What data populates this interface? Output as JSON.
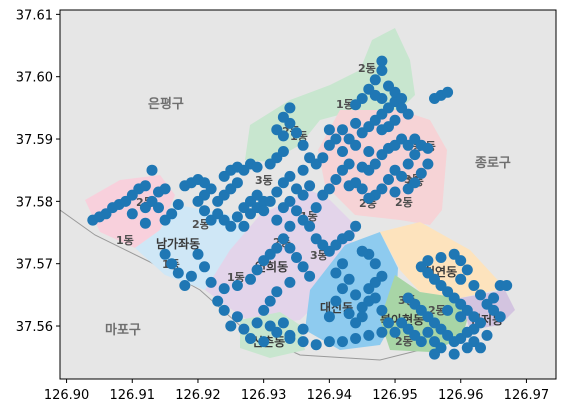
{
  "chart_data": {
    "type": "scatter",
    "title": "",
    "xlabel": "",
    "ylabel": "",
    "xlim": [
      126.899,
      126.9745
    ],
    "ylim": [
      37.5515,
      37.6107
    ],
    "xticks": [
      "126.90",
      "126.91",
      "126.92",
      "126.93",
      "126.94",
      "126.95",
      "126.96",
      "126.97"
    ],
    "yticks": [
      "37.56",
      "37.57",
      "37.58",
      "37.59",
      "37.60",
      "37.61"
    ],
    "grid": false,
    "point_color": "#1f77b4",
    "background_map_labels": {
      "outer": [
        "은평구",
        "종로구",
        "마포구"
      ],
      "districts": [
        "남가좌동",
        "연희동",
        "대신동",
        "천연동",
        "북아현동",
        "현저동",
        "신촌동"
      ],
      "subdistricts": [
        "2동",
        "2동",
        "1동",
        "2동",
        "1동",
        "2동",
        "1동",
        "2동",
        "1동",
        "2동",
        "2동",
        "3동",
        "3동",
        "2동",
        "2동",
        "3동",
        "2동",
        "2동",
        "3동",
        "1동",
        "1동",
        "2동"
      ]
    },
    "series": [
      {
        "points": [
          [
            126.904,
            37.577
          ],
          [
            126.906,
            37.578
          ],
          [
            126.905,
            37.5775
          ],
          [
            126.907,
            37.579
          ],
          [
            126.908,
            37.5795
          ],
          [
            126.909,
            37.58
          ],
          [
            126.91,
            37.581
          ],
          [
            126.911,
            37.582
          ],
          [
            126.912,
            37.5825
          ],
          [
            126.913,
            37.585
          ],
          [
            126.91,
            37.578
          ],
          [
            126.912,
            37.579
          ],
          [
            126.913,
            37.58
          ],
          [
            126.914,
            37.5815
          ],
          [
            126.915,
            37.582
          ],
          [
            126.914,
            37.579
          ],
          [
            126.912,
            37.5765
          ],
          [
            126.915,
            37.577
          ],
          [
            126.916,
            37.578
          ],
          [
            126.917,
            37.5795
          ],
          [
            126.918,
            37.5825
          ],
          [
            126.919,
            37.583
          ],
          [
            126.92,
            37.5835
          ],
          [
            126.921,
            37.583
          ],
          [
            126.922,
            37.582
          ],
          [
            126.921,
            37.581
          ],
          [
            126.923,
            37.58
          ],
          [
            126.924,
            37.581
          ],
          [
            126.925,
            37.582
          ],
          [
            126.926,
            37.583
          ],
          [
            126.924,
            37.584
          ],
          [
            126.925,
            37.585
          ],
          [
            126.926,
            37.5855
          ],
          [
            126.927,
            37.585
          ],
          [
            126.928,
            37.586
          ],
          [
            126.929,
            37.5855
          ],
          [
            126.92,
            37.58
          ],
          [
            126.921,
            37.5785
          ],
          [
            126.922,
            37.577
          ],
          [
            126.923,
            37.578
          ],
          [
            126.924,
            37.577
          ],
          [
            126.925,
            37.576
          ],
          [
            126.926,
            37.5775
          ],
          [
            126.927,
            37.579
          ],
          [
            126.928,
            37.58
          ],
          [
            126.929,
            37.581
          ],
          [
            126.928,
            37.578
          ],
          [
            126.927,
            37.576
          ],
          [
            126.929,
            37.579
          ],
          [
            126.93,
            37.58
          ],
          [
            126.931,
            37.586
          ],
          [
            126.932,
            37.587
          ],
          [
            126.933,
            37.588
          ],
          [
            126.933,
            37.5905
          ],
          [
            126.934,
            37.5925
          ],
          [
            126.934,
            37.595
          ],
          [
            126.933,
            37.5935
          ],
          [
            126.935,
            37.591
          ],
          [
            126.932,
            37.5915
          ],
          [
            126.936,
            37.589
          ],
          [
            126.937,
            37.587
          ],
          [
            126.936,
            37.585
          ],
          [
            126.938,
            37.586
          ],
          [
            126.939,
            37.587
          ],
          [
            126.934,
            37.584
          ],
          [
            126.933,
            37.583
          ],
          [
            126.935,
            37.582
          ],
          [
            126.936,
            37.581
          ],
          [
            126.937,
            37.5825
          ],
          [
            126.932,
            37.5815
          ],
          [
            126.931,
            37.58
          ],
          [
            126.93,
            37.5785
          ],
          [
            126.933,
            37.579
          ],
          [
            126.934,
            37.58
          ],
          [
            126.935,
            37.5785
          ],
          [
            126.936,
            37.577
          ],
          [
            126.932,
            37.577
          ],
          [
            126.934,
            37.576
          ],
          [
            126.937,
            37.576
          ],
          [
            126.938,
            37.574
          ],
          [
            126.939,
            37.573
          ],
          [
            126.94,
            37.572
          ],
          [
            126.941,
            37.573
          ],
          [
            126.942,
            37.574
          ],
          [
            126.943,
            37.5745
          ],
          [
            126.944,
            37.576
          ],
          [
            126.938,
            37.579
          ],
          [
            126.939,
            37.581
          ],
          [
            126.94,
            37.582
          ],
          [
            126.941,
            37.5835
          ],
          [
            126.942,
            37.585
          ],
          [
            126.943,
            37.586
          ],
          [
            126.942,
            37.588
          ],
          [
            126.944,
            37.589
          ],
          [
            126.945,
            37.5855
          ],
          [
            126.946,
            37.585
          ],
          [
            126.947,
            37.586
          ],
          [
            126.948,
            37.5875
          ],
          [
            126.946,
            37.588
          ],
          [
            126.949,
            37.5885
          ],
          [
            126.95,
            37.589
          ],
          [
            126.951,
            37.59
          ],
          [
            126.952,
            37.589
          ],
          [
            126.953,
            37.59
          ],
          [
            126.954,
            37.589
          ],
          [
            126.955,
            37.5885
          ],
          [
            126.953,
            37.5875
          ],
          [
            126.952,
            37.586
          ],
          [
            126.95,
            37.585
          ],
          [
            126.951,
            37.584
          ],
          [
            126.949,
            37.5835
          ],
          [
            126.948,
            37.582
          ],
          [
            126.947,
            37.581
          ],
          [
            126.946,
            37.5805
          ],
          [
            126.945,
            37.582
          ],
          [
            126.944,
            37.583
          ],
          [
            126.943,
            37.5825
          ],
          [
            126.95,
            37.5815
          ],
          [
            126.952,
            37.582
          ],
          [
            126.953,
            37.583
          ],
          [
            126.954,
            37.5845
          ],
          [
            126.955,
            37.586
          ],
          [
            126.945,
            37.591
          ],
          [
            126.946,
            37.592
          ],
          [
            126.947,
            37.593
          ],
          [
            126.948,
            37.594
          ],
          [
            126.949,
            37.595
          ],
          [
            126.95,
            37.596
          ],
          [
            126.948,
            37.5965
          ],
          [
            126.947,
            37.597
          ],
          [
            126.946,
            37.598
          ],
          [
            126.945,
            37.5965
          ],
          [
            126.944,
            37.5955
          ],
          [
            126.947,
            37.5995
          ],
          [
            126.948,
            37.601
          ],
          [
            126.948,
            37.6025
          ],
          [
            126.949,
            37.5985
          ],
          [
            126.95,
            37.5975
          ],
          [
            126.951,
            37.5965
          ],
          [
            126.951,
            37.595
          ],
          [
            126.952,
            37.594
          ],
          [
            126.95,
            37.593
          ],
          [
            126.949,
            37.592
          ],
          [
            126.948,
            37.5915
          ],
          [
            126.957,
            37.597
          ],
          [
            126.958,
            37.5975
          ],
          [
            126.956,
            37.5965
          ],
          [
            126.94,
            37.5915
          ],
          [
            126.941,
            37.59
          ],
          [
            126.942,
            37.5915
          ],
          [
            126.943,
            37.59
          ],
          [
            126.944,
            37.5925
          ],
          [
            126.94,
            37.589
          ],
          [
            126.94,
            37.5615
          ],
          [
            126.941,
            37.564
          ],
          [
            126.942,
            37.566
          ],
          [
            126.941,
            37.5685
          ],
          [
            126.942,
            37.57
          ],
          [
            126.943,
            37.5675
          ],
          [
            126.944,
            37.565
          ],
          [
            126.945,
            37.563
          ],
          [
            126.946,
            37.564
          ],
          [
            126.945,
            37.5615
          ],
          [
            126.944,
            37.5605
          ],
          [
            126.943,
            37.562
          ],
          [
            126.946,
            37.566
          ],
          [
            126.947,
            37.567
          ],
          [
            126.948,
            37.568
          ],
          [
            126.947,
            37.57
          ],
          [
            126.946,
            37.5715
          ],
          [
            126.945,
            37.572
          ],
          [
            126.947,
            37.5645
          ],
          [
            126.948,
            37.5625
          ],
          [
            126.949,
            37.5605
          ],
          [
            126.95,
            37.559
          ],
          [
            126.948,
            37.559
          ],
          [
            126.946,
            37.5585
          ],
          [
            126.944,
            37.558
          ],
          [
            126.942,
            37.5575
          ],
          [
            126.94,
            37.5575
          ],
          [
            126.938,
            37.557
          ],
          [
            126.936,
            37.5575
          ],
          [
            126.934,
            37.558
          ],
          [
            126.932,
            37.559
          ],
          [
            126.93,
            37.5575
          ],
          [
            126.928,
            37.558
          ],
          [
            126.927,
            37.5595
          ],
          [
            126.929,
            37.5605
          ],
          [
            126.931,
            37.56
          ],
          [
            126.933,
            37.5605
          ],
          [
            126.934,
            37.5585
          ],
          [
            126.936,
            37.5595
          ],
          [
            126.925,
            37.56
          ],
          [
            126.926,
            37.5615
          ],
          [
            126.924,
            37.5625
          ],
          [
            126.923,
            37.564
          ],
          [
            126.924,
            37.566
          ],
          [
            126.926,
            37.5665
          ],
          [
            126.928,
            37.5675
          ],
          [
            126.929,
            37.569
          ],
          [
            126.93,
            37.5705
          ],
          [
            126.931,
            37.5715
          ],
          [
            126.932,
            37.5725
          ],
          [
            126.933,
            37.574
          ],
          [
            126.934,
            37.5725
          ],
          [
            126.935,
            37.571
          ],
          [
            126.936,
            37.5695
          ],
          [
            126.937,
            37.568
          ],
          [
            126.934,
            37.567
          ],
          [
            126.932,
            37.5655
          ],
          [
            126.931,
            37.564
          ],
          [
            126.93,
            37.5625
          ],
          [
            126.92,
            37.5715
          ],
          [
            126.921,
            37.5695
          ],
          [
            126.919,
            37.568
          ],
          [
            126.918,
            37.5665
          ],
          [
            126.917,
            37.5685
          ],
          [
            126.916,
            37.57
          ],
          [
            126.915,
            37.5715
          ],
          [
            126.922,
            37.567
          ],
          [
            126.952,
            37.5645
          ],
          [
            126.953,
            37.5635
          ],
          [
            126.954,
            37.5625
          ],
          [
            126.955,
            37.5615
          ],
          [
            126.956,
            37.5605
          ],
          [
            126.957,
            37.5595
          ],
          [
            126.958,
            37.5585
          ],
          [
            126.959,
            37.5575
          ],
          [
            126.96,
            37.558
          ],
          [
            126.961,
            37.559
          ],
          [
            126.962,
            37.5595
          ],
          [
            126.963,
            37.5605
          ],
          [
            126.962,
            37.5615
          ],
          [
            126.961,
            37.5625
          ],
          [
            126.96,
            37.5635
          ],
          [
            126.959,
            37.5645
          ],
          [
            126.958,
            37.5655
          ],
          [
            126.957,
            37.5665
          ],
          [
            126.956,
            37.5675
          ],
          [
            126.955,
            37.5685
          ],
          [
            126.954,
            37.5695
          ],
          [
            126.955,
            37.5705
          ],
          [
            126.957,
            37.571
          ],
          [
            126.959,
            37.5715
          ],
          [
            126.96,
            37.5705
          ],
          [
            126.961,
            37.569
          ],
          [
            126.96,
            37.5675
          ],
          [
            126.962,
            37.5665
          ],
          [
            126.963,
            37.565
          ],
          [
            126.964,
            37.5635
          ],
          [
            126.965,
            37.5625
          ],
          [
            126.966,
            37.5615
          ],
          [
            126.965,
            37.5645
          ],
          [
            126.966,
            37.5665
          ],
          [
            126.967,
            37.5665
          ],
          [
            126.955,
            37.559
          ],
          [
            126.956,
            37.5575
          ],
          [
            126.954,
            37.5575
          ],
          [
            126.953,
            37.5585
          ],
          [
            126.952,
            37.5595
          ],
          [
            126.951,
            37.5605
          ],
          [
            126.958,
            37.5625
          ],
          [
            126.96,
            37.5615
          ],
          [
            126.962,
            37.5575
          ],
          [
            126.964,
            37.5585
          ],
          [
            126.963,
            37.5565
          ],
          [
            126.961,
            37.5565
          ],
          [
            126.957,
            37.5565
          ],
          [
            126.959,
            37.5555
          ],
          [
            126.956,
            37.5555
          ]
        ]
      }
    ]
  }
}
